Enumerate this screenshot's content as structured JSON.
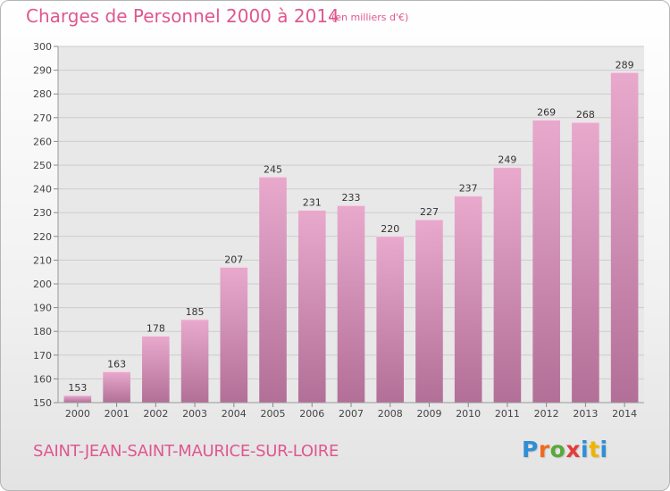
{
  "header": {
    "title": "Charges de Personnel 2000 à 2014",
    "subtitle": "(en milliers d'€)"
  },
  "footer": {
    "commune": "SAINT-JEAN-SAINT-MAURICE-SUR-LOIRE",
    "brand": "Proxiti",
    "brand_colors": [
      "#2f8fd6",
      "#ef6b1f",
      "#5aa83a",
      "#e43b3b",
      "#2f8fd6",
      "#f0b400",
      "#2f8fd6"
    ]
  },
  "colors": {
    "accent": "#e0578f",
    "bar_top": "#e9a9cd",
    "bar_bottom": "#b26f97",
    "grid": "#cccccc"
  },
  "chart_data": {
    "type": "bar",
    "title": "Charges de Personnel 2000 à 2014",
    "subtitle": "(en milliers d'€)",
    "xlabel": "",
    "ylabel": "",
    "categories": [
      "2000",
      "2001",
      "2002",
      "2003",
      "2004",
      "2005",
      "2006",
      "2007",
      "2008",
      "2009",
      "2010",
      "2011",
      "2012",
      "2013",
      "2014"
    ],
    "values": [
      153,
      163,
      178,
      185,
      207,
      245,
      231,
      233,
      220,
      227,
      237,
      249,
      269,
      268,
      289
    ],
    "ylim": [
      150,
      300
    ],
    "yticks": [
      150,
      160,
      170,
      180,
      190,
      200,
      210,
      220,
      230,
      240,
      250,
      260,
      270,
      280,
      290,
      300
    ],
    "grid": true,
    "data_labels": true
  }
}
